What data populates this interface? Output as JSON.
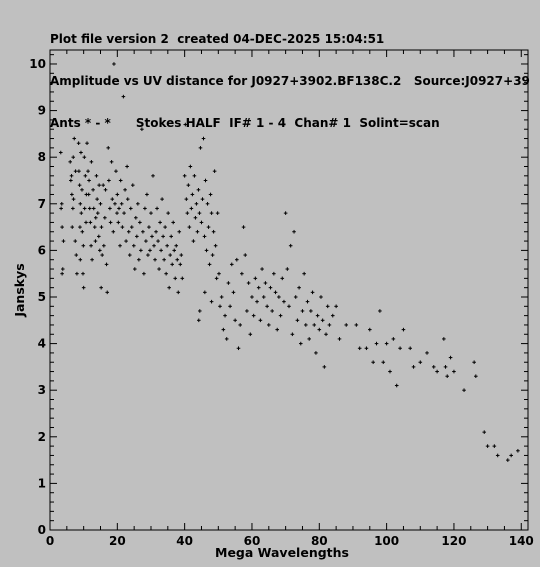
{
  "header": {
    "line1": "Plot file version 2  created 04-DEC-2025 15:04:51",
    "line2": "Amplitude vs UV distance for J0927+3902.BF138C.2   Source:J0927+39",
    "line3": "Ants * - *      Stokes HALF  IF# 1 - 4  Chan# 1  Solint=scan"
  },
  "chart_data": {
    "type": "scatter",
    "title": "Amplitude vs UV distance for J0927+3902.BF138C.2",
    "xlabel": "Mega Wavelengths",
    "ylabel": "Janskys",
    "xlim": [
      0,
      142
    ],
    "ylim": [
      0,
      10.3
    ],
    "xticks": [
      0,
      20,
      40,
      60,
      80,
      100,
      120,
      140
    ],
    "yticks": [
      0,
      1,
      2,
      3,
      4,
      5,
      6,
      7,
      8,
      9,
      10
    ],
    "grid": false,
    "marker": "+",
    "point_color": "#000000",
    "series": [
      {
        "points": [
          [
            3.2,
            8.1
          ],
          [
            3.3,
            6.9
          ],
          [
            3.5,
            7.0
          ],
          [
            3.6,
            6.5
          ],
          [
            3.8,
            5.6
          ],
          [
            3.6,
            5.5
          ],
          [
            4.0,
            6.2
          ],
          [
            6.0,
            7.9
          ],
          [
            6.2,
            7.5
          ],
          [
            6.5,
            7.2
          ],
          [
            6.8,
            6.9
          ],
          [
            7.0,
            7.1
          ],
          [
            7.2,
            8.4
          ],
          [
            6.6,
            6.5
          ],
          [
            7.5,
            6.2
          ],
          [
            7.8,
            5.9
          ],
          [
            8.0,
            5.5
          ],
          [
            7.6,
            7.7
          ],
          [
            6.4,
            7.6
          ],
          [
            6.9,
            8.0
          ],
          [
            8.5,
            8.3
          ],
          [
            8.8,
            7.4
          ],
          [
            9.0,
            7.0
          ],
          [
            9.3,
            6.8
          ],
          [
            9.6,
            6.4
          ],
          [
            9.0,
            5.8
          ],
          [
            9.8,
            5.5
          ],
          [
            10.0,
            5.2
          ],
          [
            10.2,
            8.0
          ],
          [
            10.5,
            7.6
          ],
          [
            10.8,
            7.2
          ],
          [
            9.2,
            8.1
          ],
          [
            8.6,
            7.7
          ],
          [
            9.5,
            7.3
          ],
          [
            10.3,
            6.9
          ],
          [
            10.7,
            6.6
          ],
          [
            9.9,
            6.1
          ],
          [
            8.9,
            6.5
          ],
          [
            11.0,
            8.3
          ],
          [
            11.3,
            7.7
          ],
          [
            11.5,
            7.2
          ],
          [
            11.8,
            6.9
          ],
          [
            12.0,
            6.6
          ],
          [
            12.2,
            6.1
          ],
          [
            12.5,
            5.8
          ],
          [
            11.6,
            7.5
          ],
          [
            12.8,
            7.3
          ],
          [
            13.0,
            6.9
          ],
          [
            13.3,
            6.5
          ],
          [
            13.5,
            6.2
          ],
          [
            13.8,
            7.6
          ],
          [
            14.0,
            7.1
          ],
          [
            14.2,
            6.8
          ],
          [
            14.5,
            6.3
          ],
          [
            14.8,
            6.0
          ],
          [
            12.3,
            7.9
          ],
          [
            13.6,
            6.7
          ],
          [
            14.6,
            7.4
          ],
          [
            15.0,
            7.0
          ],
          [
            15.3,
            6.5
          ],
          [
            15.5,
            5.9
          ],
          [
            15.8,
            7.4
          ],
          [
            16.0,
            6.1
          ],
          [
            16.3,
            6.7
          ],
          [
            16.5,
            7.3
          ],
          [
            15.2,
            5.2
          ],
          [
            16.8,
            5.7
          ],
          [
            17.0,
            5.1
          ],
          [
            17.3,
            8.2
          ],
          [
            17.5,
            7.5
          ],
          [
            17.8,
            6.9
          ],
          [
            18.0,
            6.6
          ],
          [
            18.3,
            7.9
          ],
          [
            18.5,
            7.1
          ],
          [
            18.8,
            6.4
          ],
          [
            19.0,
            10.0
          ],
          [
            19.3,
            7.0
          ],
          [
            19.6,
            7.7
          ],
          [
            19.9,
            6.8
          ],
          [
            20.0,
            7.2
          ],
          [
            20.3,
            6.6
          ],
          [
            20.5,
            6.9
          ],
          [
            20.8,
            6.1
          ],
          [
            21.0,
            7.5
          ],
          [
            21.3,
            7.0
          ],
          [
            21.5,
            6.5
          ],
          [
            21.8,
            9.3
          ],
          [
            22.0,
            6.8
          ],
          [
            22.3,
            7.3
          ],
          [
            22.6,
            6.2
          ],
          [
            22.9,
            7.8
          ],
          [
            23.1,
            7.1
          ],
          [
            23.4,
            6.4
          ],
          [
            23.7,
            5.9
          ],
          [
            24.0,
            6.9
          ],
          [
            24.3,
            6.5
          ],
          [
            24.6,
            7.4
          ],
          [
            24.9,
            6.1
          ],
          [
            25.2,
            5.6
          ],
          [
            25.5,
            6.7
          ],
          [
            25.8,
            6.3
          ],
          [
            26.1,
            7.0
          ],
          [
            26.4,
            5.8
          ],
          [
            26.7,
            6.6
          ],
          [
            27.0,
            6.0
          ],
          [
            27.3,
            8.6
          ],
          [
            27.6,
            6.4
          ],
          [
            27.9,
            5.5
          ],
          [
            28.2,
            6.9
          ],
          [
            28.5,
            6.2
          ],
          [
            28.8,
            7.2
          ],
          [
            29.1,
            5.9
          ],
          [
            29.4,
            6.5
          ],
          [
            29.7,
            6.0
          ],
          [
            30.0,
            6.8
          ],
          [
            30.3,
            6.3
          ],
          [
            30.6,
            7.6
          ],
          [
            30.9,
            6.1
          ],
          [
            31.2,
            5.8
          ],
          [
            31.5,
            6.4
          ],
          [
            31.8,
            6.9
          ],
          [
            32.1,
            6.2
          ],
          [
            32.4,
            5.6
          ],
          [
            32.7,
            6.6
          ],
          [
            33.0,
            6.0
          ],
          [
            33.3,
            7.1
          ],
          [
            33.6,
            6.3
          ],
          [
            33.9,
            5.8
          ],
          [
            34.2,
            6.5
          ],
          [
            34.5,
            5.5
          ],
          [
            34.8,
            6.1
          ],
          [
            35.1,
            6.8
          ],
          [
            35.4,
            5.2
          ],
          [
            35.7,
            5.9
          ],
          [
            36.0,
            6.3
          ],
          [
            36.3,
            5.7
          ],
          [
            36.6,
            6.6
          ],
          [
            36.9,
            6.0
          ],
          [
            37.2,
            5.4
          ],
          [
            37.5,
            6.1
          ],
          [
            37.8,
            5.8
          ],
          [
            38.1,
            5.1
          ],
          [
            38.4,
            6.4
          ],
          [
            38.7,
            5.7
          ],
          [
            39.0,
            5.9
          ],
          [
            39.3,
            5.4
          ],
          [
            40.0,
            7.6
          ],
          [
            40.2,
            8.7
          ],
          [
            40.5,
            7.1
          ],
          [
            40.8,
            6.8
          ],
          [
            41.1,
            7.4
          ],
          [
            41.4,
            6.5
          ],
          [
            41.7,
            7.8
          ],
          [
            42.0,
            6.9
          ],
          [
            42.3,
            7.2
          ],
          [
            42.6,
            6.2
          ],
          [
            42.9,
            7.6
          ],
          [
            43.2,
            6.7
          ],
          [
            43.5,
            7.0
          ],
          [
            43.8,
            6.4
          ],
          [
            44.1,
            7.3
          ],
          [
            44.4,
            6.8
          ],
          [
            44.7,
            8.2
          ],
          [
            45.0,
            6.6
          ],
          [
            45.3,
            7.1
          ],
          [
            45.6,
            8.4
          ],
          [
            45.9,
            6.3
          ],
          [
            46.2,
            7.5
          ],
          [
            46.5,
            6.0
          ],
          [
            46.8,
            7.0
          ],
          [
            47.1,
            6.5
          ],
          [
            47.4,
            5.7
          ],
          [
            47.7,
            7.2
          ],
          [
            48.0,
            6.8
          ],
          [
            48.3,
            5.9
          ],
          [
            48.6,
            6.4
          ],
          [
            48.9,
            7.7
          ],
          [
            49.2,
            6.1
          ],
          [
            49.5,
            5.4
          ],
          [
            49.8,
            6.8
          ],
          [
            44.2,
            4.5
          ],
          [
            44.5,
            4.7
          ],
          [
            46.0,
            5.1
          ],
          [
            48.0,
            4.9
          ],
          [
            50.2,
            5.5
          ],
          [
            50.5,
            4.8
          ],
          [
            51.0,
            5.0
          ],
          [
            51.5,
            4.3
          ],
          [
            52.0,
            4.6
          ],
          [
            52.5,
            4.1
          ],
          [
            53.0,
            5.3
          ],
          [
            53.5,
            4.8
          ],
          [
            54.0,
            5.7
          ],
          [
            54.5,
            5.1
          ],
          [
            55.0,
            4.5
          ],
          [
            55.5,
            5.8
          ],
          [
            56.0,
            3.9
          ],
          [
            56.5,
            4.4
          ],
          [
            57.0,
            5.5
          ],
          [
            57.5,
            6.5
          ],
          [
            58.0,
            5.9
          ],
          [
            58.5,
            4.7
          ],
          [
            59.0,
            5.3
          ],
          [
            59.5,
            4.2
          ],
          [
            60.0,
            5.0
          ],
          [
            60.5,
            4.6
          ],
          [
            61.0,
            5.4
          ],
          [
            61.5,
            4.9
          ],
          [
            62.0,
            5.2
          ],
          [
            62.5,
            4.5
          ],
          [
            63.0,
            5.6
          ],
          [
            63.5,
            5.0
          ],
          [
            64.0,
            5.3
          ],
          [
            64.5,
            4.8
          ],
          [
            65.0,
            4.4
          ],
          [
            65.5,
            5.2
          ],
          [
            66.0,
            4.7
          ],
          [
            66.5,
            5.5
          ],
          [
            67.0,
            5.1
          ],
          [
            67.5,
            4.3
          ],
          [
            68.0,
            5.0
          ],
          [
            68.5,
            4.6
          ],
          [
            69.0,
            5.4
          ],
          [
            69.5,
            4.9
          ],
          [
            70.0,
            6.8
          ],
          [
            70.5,
            5.6
          ],
          [
            71.0,
            4.8
          ],
          [
            71.5,
            6.1
          ],
          [
            72.0,
            4.2
          ],
          [
            72.5,
            6.4
          ],
          [
            73.0,
            5.0
          ],
          [
            73.5,
            4.5
          ],
          [
            74.0,
            5.2
          ],
          [
            74.5,
            4.0
          ],
          [
            75.0,
            4.7
          ],
          [
            75.5,
            5.5
          ],
          [
            76.0,
            4.4
          ],
          [
            76.5,
            4.9
          ],
          [
            77.0,
            4.1
          ],
          [
            77.5,
            4.7
          ],
          [
            78.0,
            5.1
          ],
          [
            78.5,
            4.4
          ],
          [
            79.0,
            3.8
          ],
          [
            79.5,
            4.6
          ],
          [
            80.0,
            4.3
          ],
          [
            80.5,
            5.0
          ],
          [
            81.0,
            4.5
          ],
          [
            81.5,
            3.5
          ],
          [
            82.0,
            4.2
          ],
          [
            82.5,
            4.8
          ],
          [
            83.0,
            4.4
          ],
          [
            84.0,
            4.6
          ],
          [
            85.0,
            4.8
          ],
          [
            86.0,
            4.1
          ],
          [
            88.0,
            4.4
          ],
          [
            91.0,
            4.4
          ],
          [
            92.0,
            3.9
          ],
          [
            94.0,
            3.9
          ],
          [
            95.0,
            4.3
          ],
          [
            96.0,
            3.6
          ],
          [
            97.0,
            4.0
          ],
          [
            98.0,
            4.7
          ],
          [
            99.0,
            3.6
          ],
          [
            100.0,
            4.0
          ],
          [
            101.0,
            3.4
          ],
          [
            102.0,
            4.1
          ],
          [
            103.0,
            3.1
          ],
          [
            104.0,
            3.9
          ],
          [
            105.0,
            4.3
          ],
          [
            107.0,
            3.9
          ],
          [
            108.0,
            3.5
          ],
          [
            110.0,
            3.6
          ],
          [
            112.0,
            3.8
          ],
          [
            114.0,
            3.5
          ],
          [
            115.0,
            3.4
          ],
          [
            117.0,
            4.1
          ],
          [
            117.5,
            3.5
          ],
          [
            118.0,
            3.3
          ],
          [
            119.0,
            3.7
          ],
          [
            120.0,
            3.4
          ],
          [
            123.0,
            3.0
          ],
          [
            126.0,
            3.6
          ],
          [
            126.5,
            3.3
          ],
          [
            129.0,
            2.1
          ],
          [
            130.0,
            1.8
          ],
          [
            132.0,
            1.8
          ],
          [
            133.0,
            1.6
          ],
          [
            136.0,
            1.5
          ],
          [
            137.0,
            1.6
          ],
          [
            139.0,
            1.7
          ]
        ]
      }
    ]
  }
}
